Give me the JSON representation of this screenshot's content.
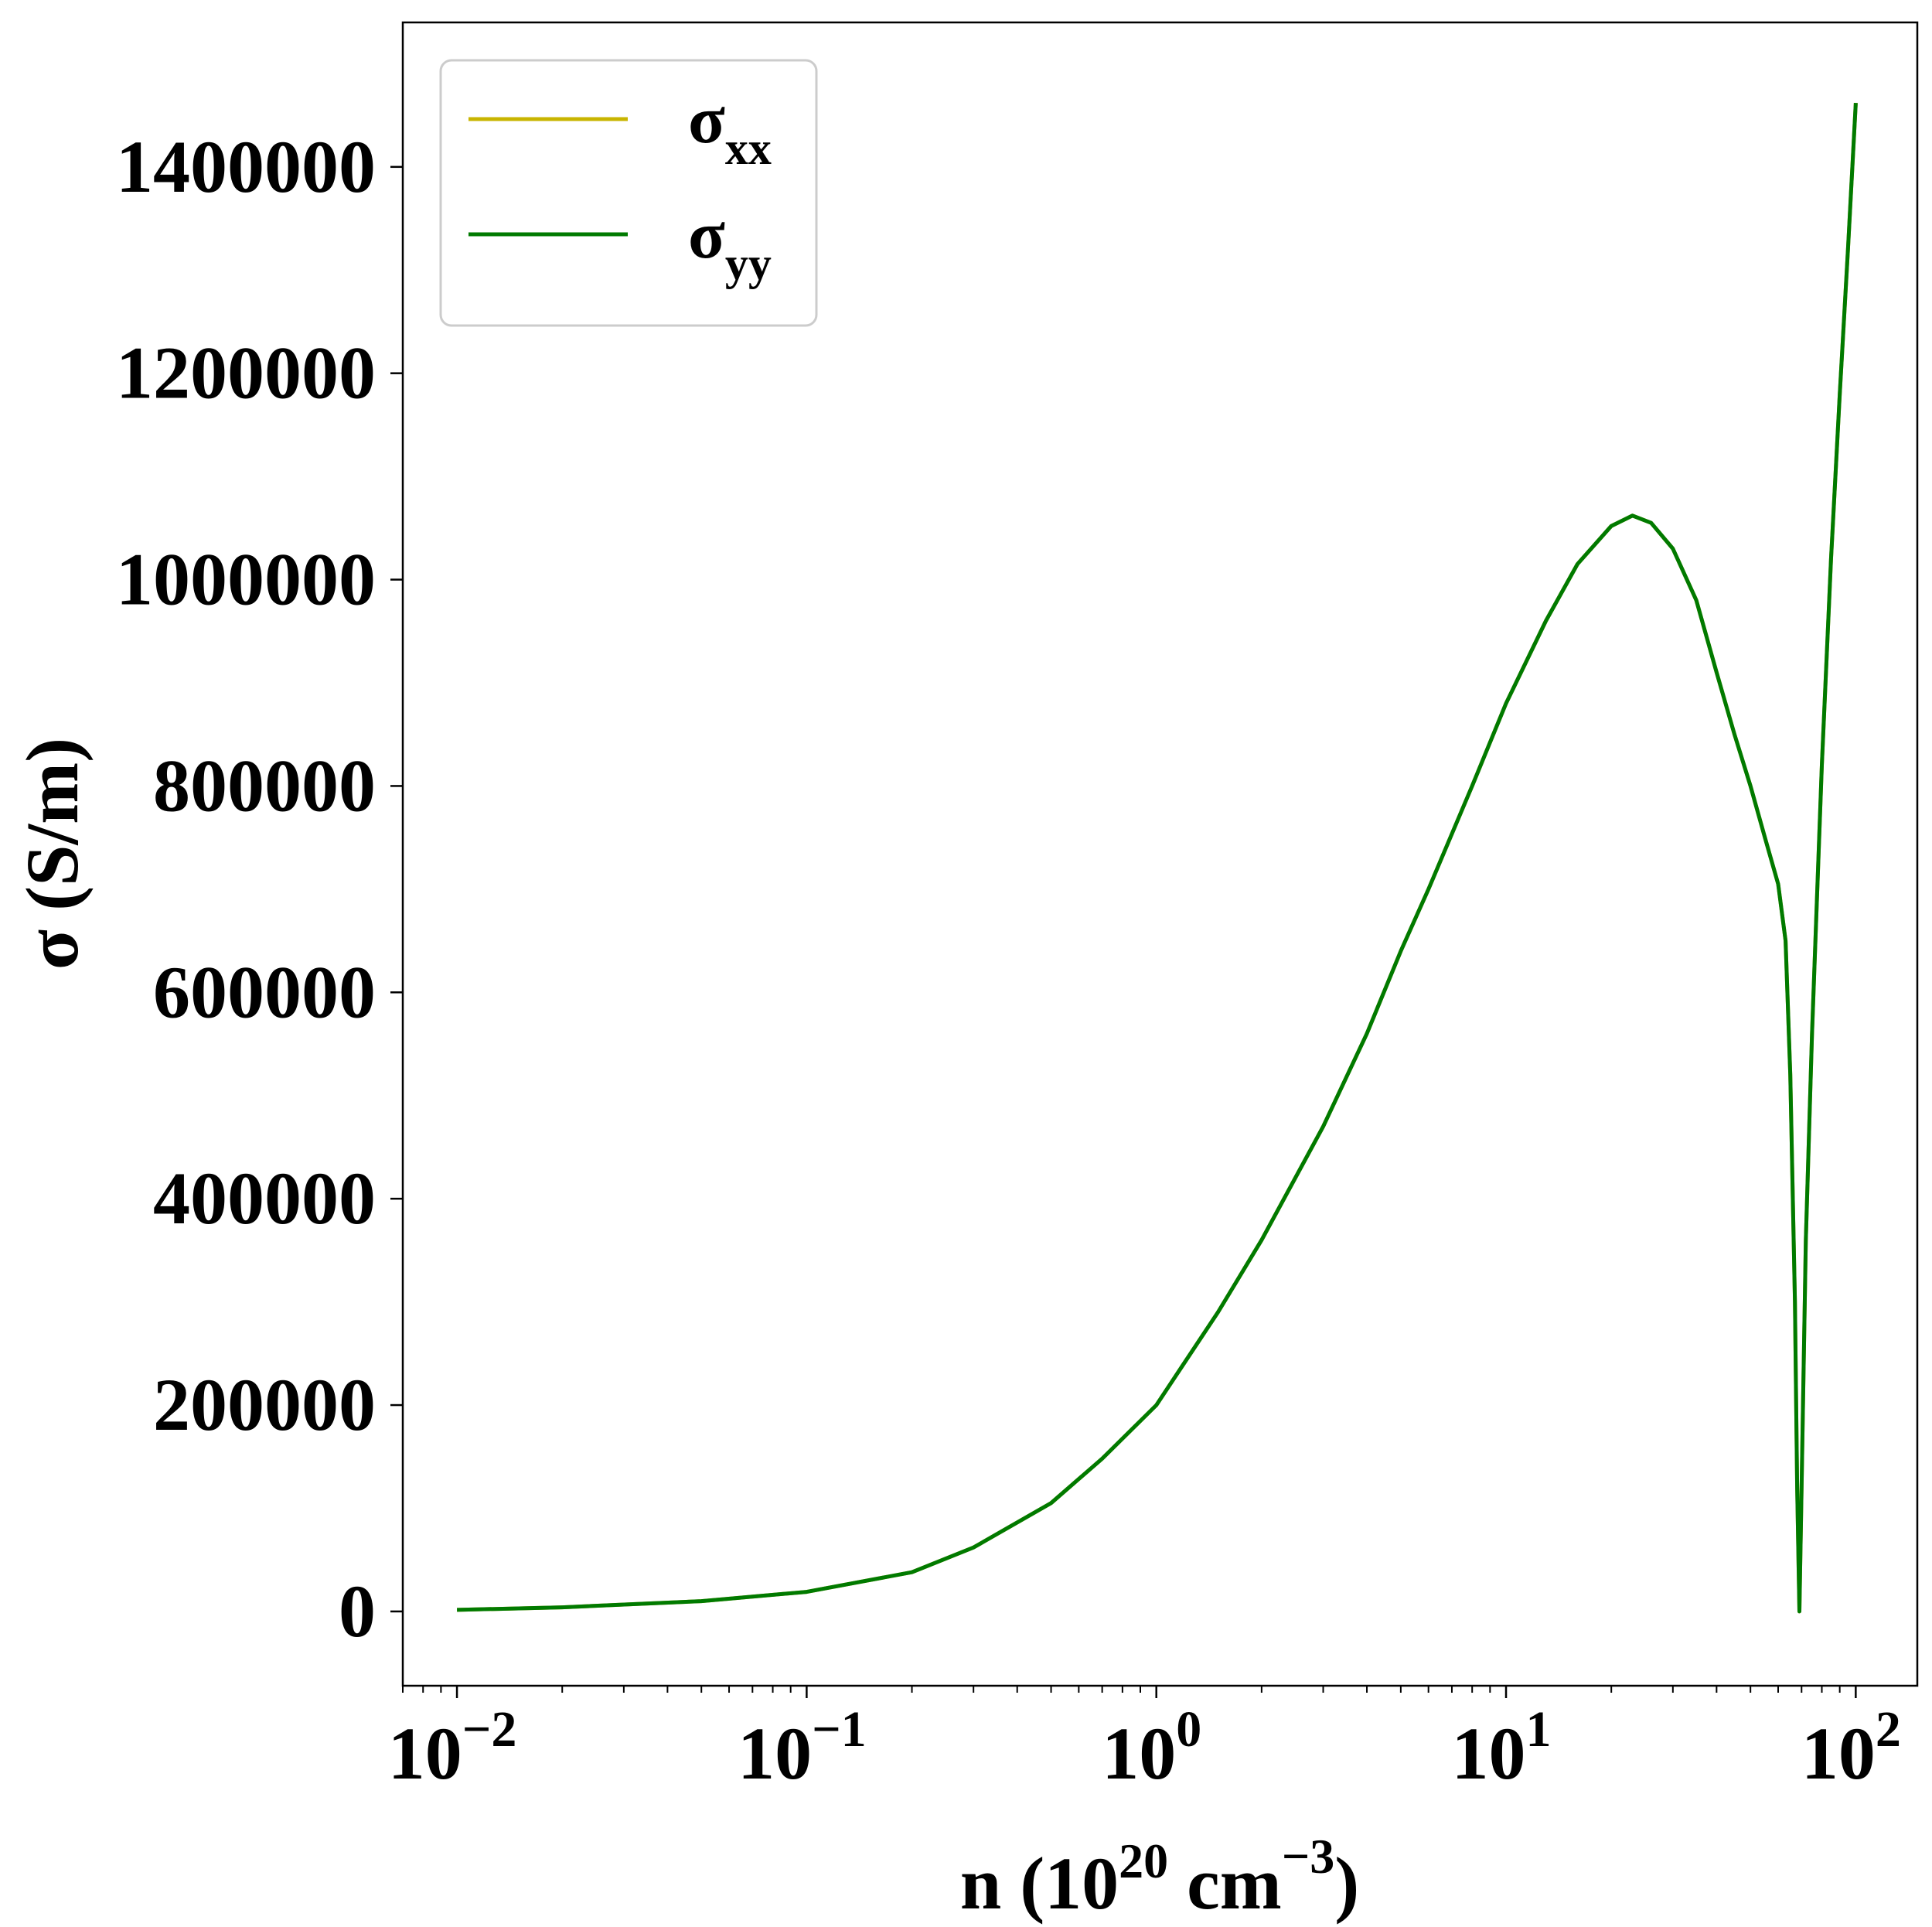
{
  "chart_data": {
    "type": "line",
    "title": "",
    "xlabel": {
      "main": "n (10",
      "sup1": "20",
      "mid": " cm",
      "sup2": "−3",
      "end": ")"
    },
    "ylabel": "σ (S/m)",
    "x_scale": "log",
    "xlim": [
      0.007,
      150
    ],
    "ylim": [
      -72000,
      1540000
    ],
    "grid": false,
    "legend_position": "top-left",
    "x_ticks": [
      {
        "value": 0.01,
        "base": "10",
        "exp": "−2"
      },
      {
        "value": 0.1,
        "base": "10",
        "exp": "−1"
      },
      {
        "value": 1,
        "base": "10",
        "exp": "0"
      },
      {
        "value": 10,
        "base": "10",
        "exp": "1"
      },
      {
        "value": 100,
        "base": "10",
        "exp": "2"
      }
    ],
    "y_ticks": [
      0,
      200000,
      400000,
      600000,
      800000,
      1000000,
      1200000,
      1400000
    ],
    "y_tick_labels": [
      "0",
      "200000",
      "400000",
      "600000",
      "800000",
      "1000000",
      "1200000",
      "1400000"
    ],
    "series": [
      {
        "name": "σ",
        "subscript": "xx",
        "color": "#c8b400",
        "x": [
          0.01,
          0.02,
          0.05,
          0.1,
          0.2,
          0.3,
          0.5,
          0.7,
          1,
          1.5,
          2,
          3,
          4,
          5,
          6,
          8,
          10,
          13,
          16,
          20,
          23,
          26,
          30,
          35,
          40,
          45,
          50,
          55,
          60,
          63,
          65,
          67,
          68,
          69,
          70,
          72,
          75,
          80,
          85,
          90,
          95,
          100
        ],
        "values": [
          1500,
          4000,
          10000,
          19000,
          38000,
          62000,
          105000,
          148000,
          200000,
          290000,
          360000,
          470000,
          560000,
          640000,
          700000,
          800000,
          880000,
          960000,
          1015000,
          1052000,
          1062000,
          1055000,
          1030000,
          980000,
          910000,
          850000,
          800000,
          750000,
          705000,
          650000,
          520000,
          300000,
          120000,
          0,
          120000,
          360000,
          560000,
          820000,
          1020000,
          1180000,
          1320000,
          1462000
        ]
      },
      {
        "name": "σ",
        "subscript": "yy",
        "color": "#007a00",
        "x": [
          0.01,
          0.02,
          0.05,
          0.1,
          0.2,
          0.3,
          0.5,
          0.7,
          1,
          1.5,
          2,
          3,
          4,
          5,
          6,
          8,
          10,
          13,
          16,
          20,
          23,
          26,
          30,
          35,
          40,
          45,
          50,
          55,
          60,
          63,
          65,
          67,
          68,
          69,
          70,
          72,
          75,
          80,
          85,
          90,
          95,
          100
        ],
        "values": [
          1500,
          4000,
          10000,
          19000,
          38000,
          62000,
          105000,
          148000,
          200000,
          290000,
          360000,
          470000,
          560000,
          640000,
          700000,
          800000,
          880000,
          960000,
          1015000,
          1052000,
          1062000,
          1055000,
          1030000,
          980000,
          910000,
          850000,
          800000,
          750000,
          705000,
          650000,
          520000,
          300000,
          120000,
          0,
          120000,
          360000,
          560000,
          820000,
          1020000,
          1180000,
          1320000,
          1462000
        ]
      }
    ]
  }
}
